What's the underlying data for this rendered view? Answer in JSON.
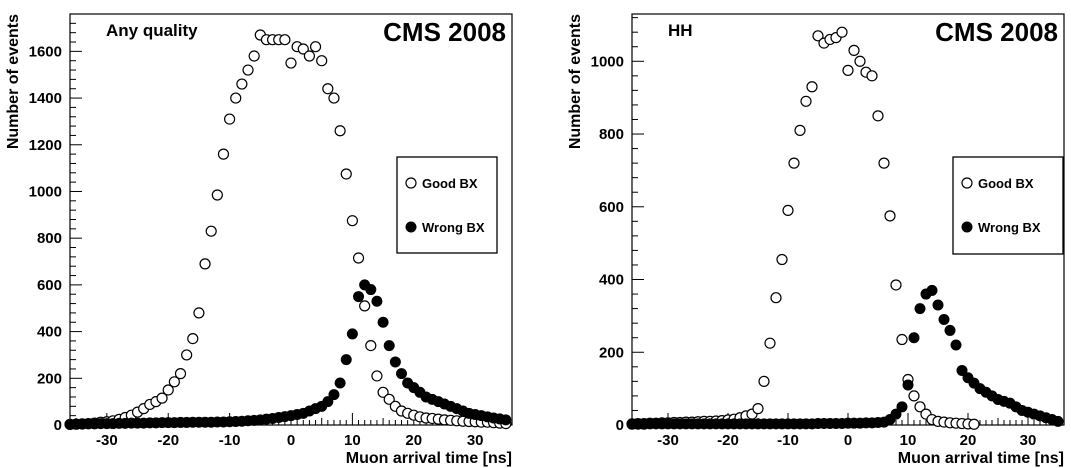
{
  "chart_data": [
    {
      "type": "scatter",
      "annotation": "Any quality",
      "title": "CMS 2008",
      "xlabel": "Muon arrival time [ns]",
      "ylabel": "Number of events",
      "xlim": [
        -36,
        36
      ],
      "ylim": [
        0,
        1760
      ],
      "xticks": [
        -30,
        -20,
        -10,
        0,
        10,
        20,
        30
      ],
      "yticks": [
        0,
        200,
        400,
        600,
        800,
        1000,
        1200,
        1400,
        1600
      ],
      "legend": "right-middle",
      "series": [
        {
          "name": "Good BX",
          "marker": "open-circle",
          "x": [
            -36,
            -35,
            -34,
            -33,
            -32,
            -31,
            -30,
            -29,
            -28,
            -27,
            -26,
            -25,
            -24,
            -23,
            -22,
            -21,
            -20,
            -19,
            -18,
            -17,
            -16,
            -15,
            -14,
            -13,
            -12,
            -11,
            -10,
            -9,
            -8,
            -7,
            -6,
            -5,
            -4,
            -3,
            -2,
            -1,
            0,
            1,
            2,
            3,
            4,
            5,
            6,
            7,
            8,
            9,
            10,
            11,
            12,
            13,
            14,
            15,
            16,
            17,
            18,
            19,
            20,
            21,
            22,
            23,
            24,
            25,
            26,
            27,
            28,
            29,
            30,
            31,
            32,
            33,
            34,
            35
          ],
          "values": [
            3,
            4,
            5,
            6,
            8,
            12,
            14,
            18,
            24,
            32,
            42,
            55,
            70,
            88,
            100,
            115,
            150,
            185,
            220,
            300,
            370,
            480,
            690,
            830,
            985,
            1160,
            1310,
            1400,
            1460,
            1520,
            1580,
            1670,
            1650,
            1650,
            1650,
            1650,
            1550,
            1620,
            1610,
            1580,
            1620,
            1560,
            1440,
            1400,
            1260,
            1075,
            875,
            715,
            510,
            340,
            210,
            140,
            110,
            80,
            60,
            50,
            42,
            35,
            30,
            28,
            25,
            22,
            20,
            18,
            16,
            15,
            14,
            12,
            12,
            10,
            8,
            6
          ]
        },
        {
          "name": "Wrong BX",
          "marker": "filled-circle",
          "x": [
            -36,
            -35,
            -34,
            -33,
            -32,
            -31,
            -30,
            -29,
            -28,
            -27,
            -26,
            -25,
            -24,
            -23,
            -22,
            -21,
            -20,
            -19,
            -18,
            -17,
            -16,
            -15,
            -14,
            -13,
            -12,
            -11,
            -10,
            -9,
            -8,
            -7,
            -6,
            -5,
            -4,
            -3,
            -2,
            -1,
            0,
            1,
            2,
            3,
            4,
            5,
            6,
            7,
            8,
            9,
            10,
            11,
            12,
            13,
            14,
            15,
            16,
            17,
            18,
            19,
            20,
            21,
            22,
            23,
            24,
            25,
            26,
            27,
            28,
            29,
            30,
            31,
            32,
            33,
            34,
            35
          ],
          "values": [
            2,
            3,
            4,
            5,
            5,
            6,
            6,
            6,
            7,
            7,
            8,
            8,
            8,
            9,
            9,
            10,
            10,
            10,
            11,
            11,
            12,
            12,
            12,
            12,
            13,
            13,
            14,
            15,
            16,
            18,
            20,
            22,
            25,
            28,
            32,
            36,
            40,
            45,
            50,
            60,
            70,
            80,
            100,
            130,
            180,
            280,
            390,
            550,
            600,
            580,
            530,
            440,
            340,
            270,
            220,
            180,
            160,
            140,
            120,
            110,
            100,
            90,
            80,
            70,
            60,
            50,
            45,
            40,
            35,
            30,
            26,
            22
          ]
        }
      ]
    },
    {
      "type": "scatter",
      "annotation": "HH",
      "title": "CMS 2008",
      "xlabel": "Muon arrival time [ns]",
      "ylabel": "Number of events",
      "xlim": [
        -36,
        36
      ],
      "ylim": [
        0,
        1130
      ],
      "xticks": [
        -30,
        -20,
        -10,
        0,
        10,
        20,
        30
      ],
      "yticks": [
        0,
        200,
        400,
        600,
        800,
        1000
      ],
      "legend": "right-middle",
      "series": [
        {
          "name": "Good BX",
          "marker": "open-circle",
          "x": [
            -36,
            -35,
            -34,
            -33,
            -32,
            -31,
            -30,
            -29,
            -28,
            -27,
            -26,
            -25,
            -24,
            -23,
            -22,
            -21,
            -20,
            -19,
            -18,
            -17,
            -16,
            -15,
            -14,
            -13,
            -12,
            -11,
            -10,
            -9,
            -8,
            -7,
            -6,
            -5,
            -4,
            -3,
            -2,
            -1,
            0,
            1,
            2,
            3,
            4,
            5,
            6,
            7,
            8,
            9,
            10,
            11,
            12,
            13,
            14,
            15,
            16,
            17,
            18,
            19,
            20,
            21
          ],
          "values": [
            3,
            4,
            4,
            5,
            5,
            6,
            6,
            7,
            7,
            8,
            8,
            9,
            10,
            10,
            11,
            12,
            14,
            16,
            20,
            25,
            30,
            45,
            120,
            225,
            350,
            455,
            590,
            720,
            810,
            890,
            930,
            1070,
            1050,
            1060,
            1065,
            1080,
            975,
            1030,
            1000,
            970,
            960,
            850,
            720,
            575,
            385,
            235,
            125,
            80,
            50,
            30,
            15,
            10,
            8,
            6,
            5,
            4,
            3,
            2
          ]
        },
        {
          "name": "Wrong BX",
          "marker": "filled-circle",
          "x": [
            -36,
            -35,
            -34,
            -33,
            -32,
            -31,
            -30,
            -29,
            -28,
            -27,
            -26,
            -25,
            -24,
            -23,
            -22,
            -21,
            -20,
            -19,
            -18,
            -17,
            -16,
            -15,
            -14,
            -13,
            -12,
            -11,
            -10,
            -9,
            -8,
            -7,
            -6,
            -5,
            -4,
            -3,
            -2,
            -1,
            0,
            1,
            2,
            3,
            4,
            5,
            6,
            7,
            8,
            9,
            10,
            11,
            12,
            13,
            14,
            15,
            16,
            17,
            18,
            19,
            20,
            21,
            22,
            23,
            24,
            25,
            26,
            27,
            28,
            29,
            30,
            31,
            32,
            33,
            34,
            35
          ],
          "values": [
            2,
            2,
            2,
            3,
            3,
            3,
            3,
            3,
            3,
            3,
            3,
            3,
            3,
            3,
            3,
            3,
            3,
            3,
            3,
            3,
            3,
            3,
            3,
            3,
            3,
            3,
            3,
            3,
            3,
            3,
            3,
            4,
            4,
            4,
            4,
            4,
            5,
            5,
            5,
            6,
            6,
            7,
            8,
            15,
            30,
            50,
            110,
            240,
            320,
            360,
            370,
            330,
            290,
            260,
            220,
            150,
            130,
            115,
            100,
            90,
            80,
            70,
            65,
            60,
            50,
            40,
            35,
            30,
            25,
            20,
            15,
            10
          ]
        }
      ]
    }
  ]
}
